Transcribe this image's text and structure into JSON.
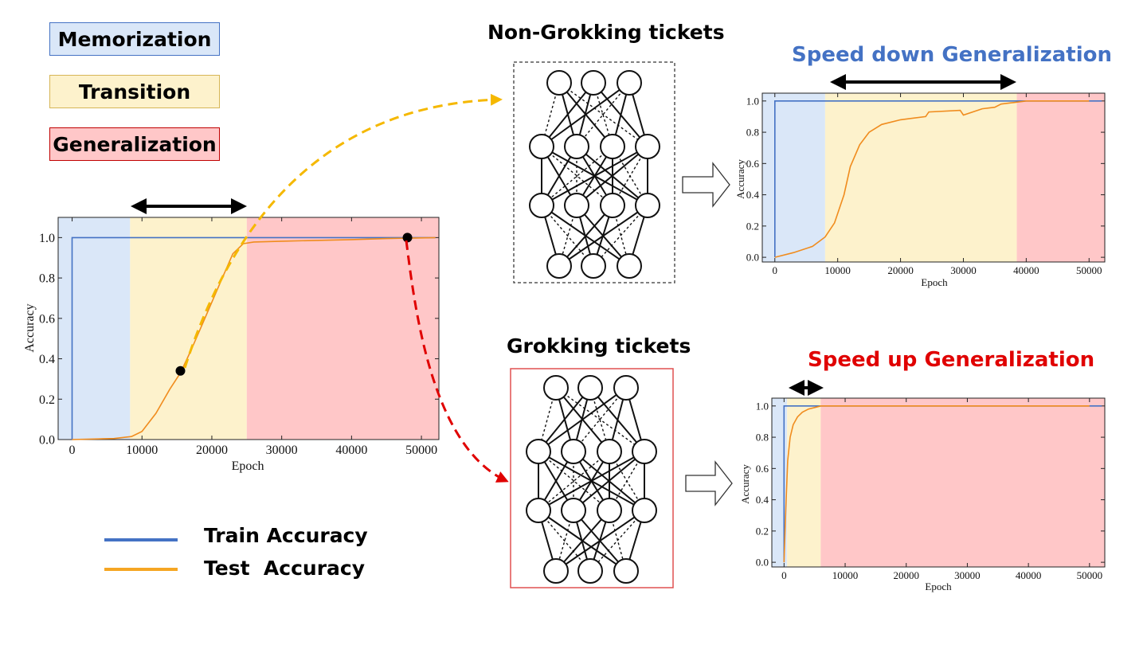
{
  "phases": {
    "memorization": {
      "label": "Memorization",
      "color": "#dae7f8",
      "border": "#4472c4"
    },
    "transition": {
      "label": "Transition",
      "color": "#fdf2cc",
      "border": "#d6b656"
    },
    "generalization": {
      "label": "Generalization",
      "color": "#ffc7c8",
      "border": "#c00000"
    }
  },
  "tickets": {
    "non_grokking": {
      "title": "Non-Grokking tickets"
    },
    "grokking": {
      "title": "Grokking tickets"
    }
  },
  "outcomes": {
    "slow": {
      "title": "Speed down Generalization",
      "color": "#4472c4"
    },
    "fast": {
      "title": "Speed up Generalization",
      "color": "#e00000"
    }
  },
  "legend": {
    "train": {
      "label": "Train Accuracy",
      "color": "#4472c4"
    },
    "test": {
      "label": "Test  Accuracy",
      "color": "#f5a623"
    }
  },
  "chart_data": [
    {
      "id": "main",
      "type": "line",
      "xlabel": "Epoch",
      "ylabel": "Accuracy",
      "xticks": [
        0,
        10000,
        20000,
        30000,
        40000,
        50000
      ],
      "yticks": [
        0.0,
        0.2,
        0.4,
        0.6,
        0.8,
        1.0
      ],
      "xlim": [
        -2000,
        52500
      ],
      "ylim": [
        0.0,
        1.1
      ],
      "phases": [
        [
          -2000,
          8300,
          "memorization"
        ],
        [
          8300,
          25000,
          "transition"
        ],
        [
          25000,
          52500,
          "generalization"
        ]
      ],
      "series": [
        {
          "name": "Train Accuracy",
          "x": [
            0,
            0,
            52000
          ],
          "y": [
            0.0,
            1.0,
            1.0
          ]
        },
        {
          "name": "Test Accuracy",
          "x": [
            0,
            6000,
            8500,
            10000,
            12000,
            14000,
            15500,
            17000,
            19000,
            21000,
            23000,
            24500,
            26000,
            30000,
            35000,
            40000,
            45000,
            52000
          ],
          "y": [
            0.0,
            0.005,
            0.015,
            0.04,
            0.13,
            0.25,
            0.33,
            0.44,
            0.6,
            0.76,
            0.92,
            0.97,
            0.978,
            0.982,
            0.986,
            0.99,
            0.995,
            1.0
          ]
        }
      ],
      "markers": [
        {
          "x": 15500,
          "y": 0.34
        },
        {
          "x": 48000,
          "y": 1.0
        }
      ]
    },
    {
      "id": "slow",
      "type": "line",
      "xlabel": "Epoch",
      "ylabel": "Accuracy",
      "xticks": [
        0,
        10000,
        20000,
        30000,
        40000,
        50000
      ],
      "yticks": [
        0.0,
        0.2,
        0.4,
        0.6,
        0.8,
        1.0
      ],
      "xlim": [
        -2000,
        52500
      ],
      "ylim": [
        -0.03,
        1.05
      ],
      "phases": [
        [
          -2000,
          8000,
          "memorization"
        ],
        [
          8000,
          38500,
          "transition"
        ],
        [
          38500,
          52500,
          "generalization"
        ]
      ],
      "series": [
        {
          "name": "Train Accuracy",
          "x": [
            0,
            0,
            52000
          ],
          "y": [
            0.0,
            1.0,
            1.0
          ]
        },
        {
          "name": "Test Accuracy",
          "x": [
            0,
            3000,
            6000,
            8000,
            9500,
            11000,
            12000,
            13500,
            15000,
            17000,
            20000,
            24000,
            24500,
            29500,
            30000,
            33000,
            35000,
            36000,
            38000,
            40000,
            45000,
            50000
          ],
          "y": [
            0.0,
            0.03,
            0.07,
            0.13,
            0.22,
            0.4,
            0.58,
            0.72,
            0.8,
            0.85,
            0.88,
            0.9,
            0.93,
            0.94,
            0.91,
            0.95,
            0.96,
            0.98,
            0.99,
            1.0,
            1.0,
            1.0
          ]
        }
      ]
    },
    {
      "id": "fast",
      "type": "line",
      "xlabel": "Epoch",
      "ylabel": "Accuracy",
      "xticks": [
        0,
        10000,
        20000,
        30000,
        40000,
        50000
      ],
      "yticks": [
        0.0,
        0.2,
        0.4,
        0.6,
        0.8,
        1.0
      ],
      "xlim": [
        -2000,
        52500
      ],
      "ylim": [
        -0.03,
        1.05
      ],
      "phases": [
        [
          -2000,
          500,
          "memorization"
        ],
        [
          500,
          6000,
          "transition"
        ],
        [
          6000,
          52500,
          "generalization"
        ]
      ],
      "series": [
        {
          "name": "Train Accuracy",
          "x": [
            0,
            0,
            52000
          ],
          "y": [
            0.0,
            1.0,
            1.0
          ]
        },
        {
          "name": "Test Accuracy",
          "x": [
            0,
            300,
            600,
            1000,
            1500,
            2200,
            3000,
            4000,
            5000,
            6000,
            50000
          ],
          "y": [
            0.0,
            0.35,
            0.65,
            0.8,
            0.88,
            0.93,
            0.96,
            0.98,
            0.99,
            1.0,
            1.0
          ]
        }
      ]
    }
  ]
}
